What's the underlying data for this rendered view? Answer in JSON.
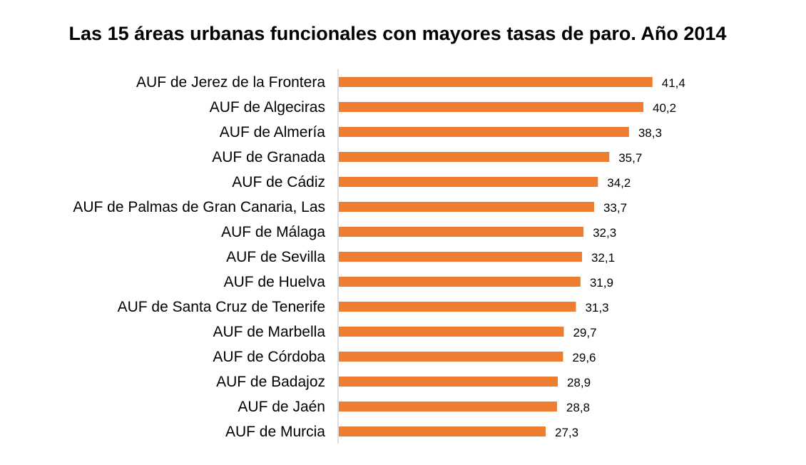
{
  "chart_data": {
    "type": "bar",
    "orientation": "horizontal",
    "title": "Las 15 áreas urbanas funcionales con mayores tasas de paro. Año 2014",
    "categories": [
      "AUF de Jerez de la Frontera",
      "AUF de Algeciras",
      "AUF de Almería",
      "AUF de Granada",
      "AUF de Cádiz",
      "AUF de Palmas de Gran Canaria, Las",
      "AUF de Málaga",
      "AUF de Sevilla",
      "AUF de Huelva",
      "AUF de Santa Cruz de Tenerife",
      "AUF de Marbella",
      "AUF de Córdoba",
      "AUF de Badajoz",
      "AUF de Jaén",
      "AUF de Murcia"
    ],
    "values": [
      41.4,
      40.2,
      38.3,
      35.7,
      34.2,
      33.7,
      32.3,
      32.1,
      31.9,
      31.3,
      29.7,
      29.6,
      28.9,
      28.8,
      27.3
    ],
    "value_labels": [
      "41,4",
      "40,2",
      "38,3",
      "35,7",
      "34,2",
      "33,7",
      "32,3",
      "32,1",
      "31,9",
      "31,3",
      "29,7",
      "29,6",
      "28,9",
      "28,8",
      "27,3"
    ],
    "xlim": [
      0,
      45
    ],
    "grid": false,
    "bar_color": "#ED7D31",
    "axis_color": "#BFBFBF"
  }
}
